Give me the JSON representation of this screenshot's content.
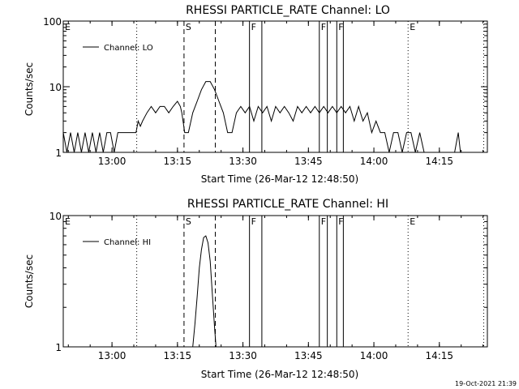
{
  "charts": [
    {
      "title": "RHESSI PARTICLE_RATE Channel: LO",
      "ylabel": "Counts/sec",
      "xlabel": "Start Time (26-Mar-12 12:48:50)",
      "legend": "Channel: LO"
    },
    {
      "title": "RHESSI PARTICLE_RATE Channel: HI",
      "ylabel": "Counts/sec",
      "xlabel": "Start Time (26-Mar-12 12:48:50)",
      "legend": "Channel: HI"
    }
  ],
  "timestamp": "19-Oct-2021 21:39",
  "chart_data": [
    {
      "type": "line",
      "title": "RHESSI PARTICLE_RATE Channel: LO",
      "xlabel": "Start Time (26-Mar-12 12:48:50)",
      "ylabel": "Counts/sec",
      "y_scale": "log",
      "xlim": [
        "12:48:50",
        "14:26:00"
      ],
      "ylim": [
        1,
        100
      ],
      "x_ticks": [
        "13:00",
        "13:15",
        "13:30",
        "13:45",
        "14:00",
        "14:15"
      ],
      "y_ticks": [
        "1",
        "10",
        "100"
      ],
      "legend_position": "top-left",
      "series": [
        {
          "name": "Channel: LO",
          "points": [
            [
              "12:48:50",
              2
            ],
            [
              "12:49:40",
              1
            ],
            [
              "12:50:30",
              2
            ],
            [
              "12:51:20",
              1
            ],
            [
              "12:52:10",
              2
            ],
            [
              "12:53:00",
              1
            ],
            [
              "12:53:50",
              2
            ],
            [
              "12:54:40",
              1
            ],
            [
              "12:55:30",
              2
            ],
            [
              "12:56:20",
              1
            ],
            [
              "12:57:10",
              2
            ],
            [
              "12:58:00",
              1
            ],
            [
              "12:58:50",
              2
            ],
            [
              "12:59:40",
              2
            ],
            [
              "13:00:30",
              1
            ],
            [
              "13:01:20",
              2
            ],
            [
              "13:02:10",
              2
            ],
            [
              "13:03:00",
              2
            ],
            [
              "13:04:00",
              2
            ],
            [
              "13:05:30",
              2
            ],
            [
              "13:06:00",
              3
            ],
            [
              "13:06:30",
              2.5
            ],
            [
              "13:07:00",
              3
            ],
            [
              "13:08:00",
              4
            ],
            [
              "13:09:00",
              5
            ],
            [
              "13:10:00",
              4
            ],
            [
              "13:11:00",
              5
            ],
            [
              "13:12:00",
              5
            ],
            [
              "13:13:00",
              4
            ],
            [
              "13:14:00",
              5
            ],
            [
              "13:15:00",
              6
            ],
            [
              "13:15:40",
              5
            ],
            [
              "13:16:00",
              4
            ],
            [
              "13:16:40",
              2
            ],
            [
              "13:17:30",
              2
            ],
            [
              "13:18:30",
              4
            ],
            [
              "13:19:30",
              6
            ],
            [
              "13:20:30",
              9
            ],
            [
              "13:21:30",
              12
            ],
            [
              "13:22:30",
              12
            ],
            [
              "13:23:30",
              9
            ],
            [
              "13:24:30",
              6
            ],
            [
              "13:25:30",
              4
            ],
            [
              "13:26:30",
              2
            ],
            [
              "13:27:30",
              2
            ],
            [
              "13:28:30",
              4
            ],
            [
              "13:29:30",
              5
            ],
            [
              "13:30:30",
              4
            ],
            [
              "13:31:30",
              5
            ],
            [
              "13:32:30",
              3
            ],
            [
              "13:33:30",
              5
            ],
            [
              "13:34:30",
              4
            ],
            [
              "13:35:30",
              5
            ],
            [
              "13:36:30",
              3
            ],
            [
              "13:37:30",
              5
            ],
            [
              "13:38:30",
              4
            ],
            [
              "13:39:30",
              5
            ],
            [
              "13:40:30",
              4
            ],
            [
              "13:41:30",
              3
            ],
            [
              "13:42:30",
              5
            ],
            [
              "13:43:30",
              4
            ],
            [
              "13:44:30",
              5
            ],
            [
              "13:45:30",
              4
            ],
            [
              "13:46:30",
              5
            ],
            [
              "13:47:30",
              4
            ],
            [
              "13:48:30",
              5
            ],
            [
              "13:49:30",
              4
            ],
            [
              "13:50:30",
              5
            ],
            [
              "13:51:30",
              4
            ],
            [
              "13:52:30",
              5
            ],
            [
              "13:53:30",
              4
            ],
            [
              "13:54:30",
              5
            ],
            [
              "13:55:30",
              3
            ],
            [
              "13:56:30",
              5
            ],
            [
              "13:57:30",
              3
            ],
            [
              "13:58:30",
              4
            ],
            [
              "13:59:30",
              2
            ],
            [
              "14:00:30",
              3
            ],
            [
              "14:01:30",
              2
            ],
            [
              "14:02:30",
              2
            ],
            [
              "14:03:30",
              1
            ],
            [
              "14:04:30",
              2
            ],
            [
              "14:05:30",
              2
            ],
            [
              "14:06:30",
              1
            ],
            [
              "14:07:30",
              2
            ],
            [
              "14:08:30",
              2
            ],
            [
              "14:09:30",
              1
            ],
            [
              "14:10:30",
              2
            ],
            [
              "14:11:30",
              1
            ],
            [
              "14:12:30",
              1
            ],
            [
              "14:13:30",
              1
            ],
            [
              "14:14:30",
              1
            ],
            [
              "14:15:30",
              1
            ],
            [
              "14:16:30",
              1
            ],
            [
              "14:17:30",
              1
            ],
            [
              "14:18:30",
              1
            ],
            [
              "14:19:20",
              2
            ],
            [
              "14:19:50",
              1
            ],
            [
              "14:20:30",
              1
            ]
          ]
        }
      ],
      "markers": [
        {
          "label": "E",
          "time": "12:48:50",
          "style": "dotted"
        },
        {
          "label": "",
          "time": "13:05:40",
          "style": "dotted"
        },
        {
          "label": "S",
          "time": "13:16:30",
          "style": "dashed"
        },
        {
          "label": "",
          "time": "13:23:40",
          "style": "dashed"
        },
        {
          "label": "F",
          "time": "13:31:30",
          "style": "solid"
        },
        {
          "label": "",
          "time": "13:34:20",
          "style": "solid"
        },
        {
          "label": "F",
          "time": "13:47:30",
          "style": "solid"
        },
        {
          "label": "",
          "time": "13:49:20",
          "style": "solid"
        },
        {
          "label": "F",
          "time": "13:51:30",
          "style": "solid"
        },
        {
          "label": "",
          "time": "13:53:00",
          "style": "solid"
        },
        {
          "label": "E",
          "time": "14:07:50",
          "style": "dotted"
        },
        {
          "label": "",
          "time": "14:25:10",
          "style": "dotted"
        }
      ]
    },
    {
      "type": "line",
      "title": "RHESSI PARTICLE_RATE Channel: HI",
      "xlabel": "Start Time (26-Mar-12 12:48:50)",
      "ylabel": "Counts/sec",
      "y_scale": "log",
      "xlim": [
        "12:48:50",
        "14:26:00"
      ],
      "ylim": [
        1,
        10
      ],
      "x_ticks": [
        "13:00",
        "13:15",
        "13:30",
        "13:45",
        "14:00",
        "14:15"
      ],
      "y_ticks": [
        "1",
        "10"
      ],
      "legend_position": "top-left",
      "series": [
        {
          "name": "Channel: HI",
          "points": [
            [
              "13:18:30",
              1
            ],
            [
              "13:19:00",
              1.5
            ],
            [
              "13:19:30",
              2.4
            ],
            [
              "13:20:00",
              4
            ],
            [
              "13:20:30",
              5.5
            ],
            [
              "13:21:00",
              6.8
            ],
            [
              "13:21:30",
              7
            ],
            [
              "13:22:00",
              6.2
            ],
            [
              "13:22:30",
              4.5
            ],
            [
              "13:23:00",
              2.5
            ],
            [
              "13:23:30",
              1.4
            ],
            [
              "13:23:50",
              1
            ]
          ]
        }
      ],
      "markers": [
        {
          "label": "E",
          "time": "12:48:50",
          "style": "dotted"
        },
        {
          "label": "",
          "time": "13:05:40",
          "style": "dotted"
        },
        {
          "label": "S",
          "time": "13:16:30",
          "style": "dashed"
        },
        {
          "label": "",
          "time": "13:23:40",
          "style": "dashed"
        },
        {
          "label": "F",
          "time": "13:31:30",
          "style": "solid"
        },
        {
          "label": "",
          "time": "13:34:20",
          "style": "solid"
        },
        {
          "label": "F",
          "time": "13:47:30",
          "style": "solid"
        },
        {
          "label": "",
          "time": "13:49:20",
          "style": "solid"
        },
        {
          "label": "F",
          "time": "13:51:30",
          "style": "solid"
        },
        {
          "label": "",
          "time": "13:53:00",
          "style": "solid"
        },
        {
          "label": "E",
          "time": "14:07:50",
          "style": "dotted"
        },
        {
          "label": "",
          "time": "14:25:10",
          "style": "dotted"
        }
      ]
    }
  ]
}
